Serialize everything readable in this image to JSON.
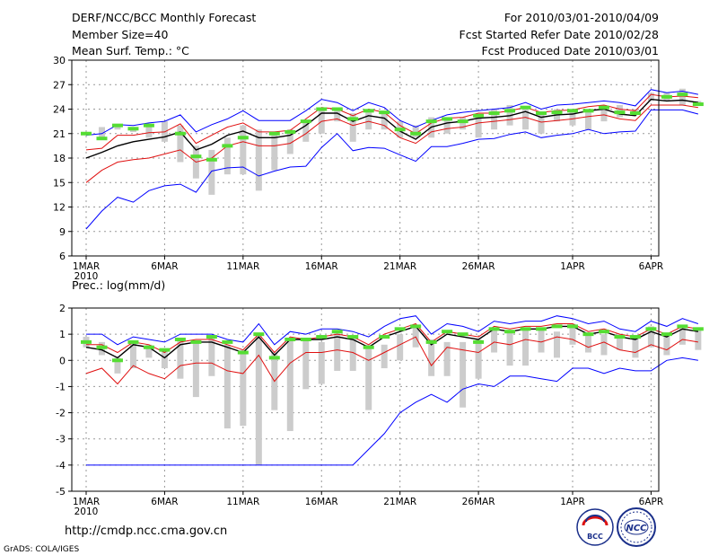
{
  "header": {
    "title": "DERF/NCC/BCC Monthly Forecast",
    "member_size": "Member Size=40",
    "forecast_range": "For 2010/03/01-2010/04/09",
    "start_date": "Fcst Started Refer Date 2010/02/28",
    "produced_date": "Fcst Produced Date 2010/03/01"
  },
  "footer": {
    "url": "http://cmdp.ncc.cma.gov.cn",
    "credit": "GrADS: COLA/IGES",
    "logo_bcc": "BCC",
    "logo_ncc": "NCC"
  },
  "colors": {
    "max": "#0000ff",
    "min": "#0000ff",
    "upper": "#e01010",
    "lower": "#e01010",
    "mean": "#000000",
    "obs": "#55dd33",
    "bar": "#cccccc",
    "grid": "#999999"
  },
  "x_ticks": [
    {
      "day": 1,
      "label": "1MAR",
      "sub": "2010"
    },
    {
      "day": 6,
      "label": "6MAR"
    },
    {
      "day": 11,
      "label": "11MAR"
    },
    {
      "day": 16,
      "label": "16MAR"
    },
    {
      "day": 21,
      "label": "21MAR"
    },
    {
      "day": 26,
      "label": "26MAR"
    },
    {
      "day": 32,
      "label": "1APR"
    },
    {
      "day": 37,
      "label": "6APR"
    }
  ],
  "chart_data": [
    {
      "type": "line",
      "title": "Mean Surf. Temp.: °C",
      "ylabel": "Mean Surf. Temp.: °C",
      "ylim": [
        6,
        30
      ],
      "yticks": [
        6,
        9,
        12,
        15,
        18,
        21,
        24,
        27,
        30
      ],
      "grid": true,
      "x": [
        1,
        2,
        3,
        4,
        5,
        6,
        7,
        8,
        9,
        10,
        11,
        12,
        13,
        14,
        15,
        16,
        17,
        18,
        19,
        20,
        21,
        22,
        23,
        24,
        25,
        26,
        27,
        28,
        29,
        30,
        31,
        32,
        33,
        34,
        35,
        36,
        37,
        38,
        39,
        40
      ],
      "series": [
        {
          "name": "max",
          "values": [
            20.8,
            21.0,
            22.1,
            22.0,
            22.3,
            22.5,
            23.3,
            21.2,
            22.1,
            22.8,
            23.8,
            22.6,
            22.6,
            22.6,
            23.8,
            25.2,
            24.8,
            23.8,
            24.8,
            24.2,
            22.6,
            21.8,
            22.6,
            23.3,
            23.6,
            23.8,
            24.0,
            24.2,
            24.8,
            24.0,
            24.5,
            24.6,
            24.8,
            25.0,
            24.8,
            24.4,
            26.4,
            26.0,
            26.2,
            25.8
          ]
        },
        {
          "name": "upper",
          "values": [
            19.0,
            19.2,
            20.8,
            20.8,
            21.1,
            21.2,
            22.2,
            19.8,
            20.8,
            21.8,
            22.3,
            21.2,
            21.2,
            21.4,
            22.8,
            24.2,
            24.0,
            23.2,
            24.0,
            23.6,
            22.0,
            21.0,
            22.3,
            22.9,
            23.0,
            23.5,
            23.5,
            23.8,
            24.2,
            23.6,
            23.8,
            23.9,
            24.3,
            24.5,
            24.0,
            23.8,
            25.8,
            25.5,
            25.6,
            25.4
          ]
        },
        {
          "name": "mean",
          "values": [
            18.0,
            18.7,
            19.5,
            20.0,
            20.3,
            20.6,
            21.2,
            19.0,
            19.7,
            20.8,
            21.3,
            20.5,
            20.5,
            20.8,
            22.0,
            23.5,
            23.5,
            22.5,
            23.2,
            22.9,
            21.3,
            20.3,
            21.8,
            22.3,
            22.5,
            22.9,
            23.0,
            23.2,
            23.7,
            23.0,
            23.3,
            23.4,
            23.8,
            24.0,
            23.4,
            23.2,
            25.2,
            25.0,
            25.1,
            24.8
          ]
        },
        {
          "name": "lower",
          "values": [
            15.0,
            16.5,
            17.5,
            17.8,
            18.0,
            18.5,
            19.0,
            17.5,
            18.0,
            19.5,
            20.0,
            19.5,
            19.5,
            19.8,
            21.0,
            22.5,
            22.8,
            22.0,
            22.5,
            22.0,
            20.5,
            19.8,
            21.2,
            21.6,
            21.8,
            22.3,
            22.5,
            22.7,
            23.0,
            22.4,
            22.6,
            22.8,
            23.1,
            23.3,
            22.8,
            22.6,
            24.5,
            24.5,
            24.5,
            24.2
          ]
        },
        {
          "name": "min",
          "values": [
            9.3,
            11.5,
            13.2,
            12.6,
            14.0,
            14.6,
            14.8,
            13.8,
            16.4,
            16.8,
            16.9,
            15.8,
            16.4,
            16.9,
            17.0,
            19.3,
            21.0,
            18.9,
            19.3,
            19.2,
            18.4,
            17.6,
            19.4,
            19.4,
            19.8,
            20.3,
            20.4,
            20.9,
            21.2,
            20.5,
            20.8,
            21.0,
            21.5,
            21.0,
            21.2,
            21.3,
            23.9,
            23.9,
            23.9,
            23.4
          ]
        }
      ],
      "bars": [
        [
          21.0,
          21.0
        ],
        [
          20.5,
          21.8
        ],
        [
          21.5,
          22.2
        ],
        [
          21.2,
          21.8
        ],
        [
          20.5,
          22.2
        ],
        [
          20.0,
          22.5
        ],
        [
          17.5,
          22.0
        ],
        [
          15.5,
          19.5
        ],
        [
          13.5,
          19.0
        ],
        [
          16.0,
          20.5
        ],
        [
          16.0,
          22.0
        ],
        [
          14.0,
          21.5
        ],
        [
          16.5,
          21.0
        ],
        [
          18.5,
          21.5
        ],
        [
          20.0,
          22.5
        ],
        [
          21.0,
          24.0
        ],
        [
          22.5,
          24.0
        ],
        [
          20.0,
          23.5
        ],
        [
          21.5,
          24.0
        ],
        [
          21.5,
          23.5
        ],
        [
          20.5,
          22.5
        ],
        [
          20.5,
          22.0
        ],
        [
          20.5,
          23.0
        ],
        [
          21.0,
          23.0
        ],
        [
          21.5,
          23.0
        ],
        [
          20.5,
          23.0
        ],
        [
          21.5,
          24.0
        ],
        [
          22.0,
          24.5
        ],
        [
          21.5,
          24.0
        ],
        [
          21.0,
          23.5
        ],
        [
          22.5,
          24.0
        ],
        [
          22.0,
          24.0
        ],
        [
          21.5,
          24.0
        ],
        [
          22.5,
          24.5
        ],
        [
          23.0,
          24.5
        ],
        [
          23.5,
          24.0
        ],
        [
          25.0,
          26.0
        ],
        [
          25.0,
          26.0
        ],
        [
          24.5,
          26.5
        ],
        [
          24.5,
          25.0
        ]
      ],
      "observed": [
        21.0,
        20.4,
        22.0,
        21.6,
        22.0,
        null,
        21.0,
        18.2,
        17.8,
        19.5,
        20.5,
        null,
        21.0,
        21.2,
        22.5,
        24.0,
        24.0,
        22.8,
        23.8,
        23.6,
        21.5,
        21.0,
        22.5,
        22.8,
        22.5,
        23.2,
        23.5,
        23.8,
        24.2,
        23.5,
        23.6,
        23.8,
        23.8,
        24.2,
        23.6,
        23.5,
        null,
        25.5,
        25.8,
        24.6
      ]
    },
    {
      "type": "line",
      "title": "Prec.: log(mm/d)",
      "ylabel": "Prec.: log(mm/d)",
      "ylim": [
        -5,
        2
      ],
      "yticks": [
        -5,
        -4,
        -3,
        -2,
        -1,
        0,
        1,
        2
      ],
      "grid": true,
      "x": [
        1,
        2,
        3,
        4,
        5,
        6,
        7,
        8,
        9,
        10,
        11,
        12,
        13,
        14,
        15,
        16,
        17,
        18,
        19,
        20,
        21,
        22,
        23,
        24,
        25,
        26,
        27,
        28,
        29,
        30,
        31,
        32,
        33,
        34,
        35,
        36,
        37,
        38,
        39,
        40
      ],
      "series": [
        {
          "name": "max",
          "values": [
            1.0,
            1.0,
            0.6,
            0.9,
            0.8,
            0.7,
            1.0,
            1.0,
            1.0,
            0.8,
            0.7,
            1.4,
            0.6,
            1.1,
            1.0,
            1.2,
            1.2,
            1.1,
            0.9,
            1.3,
            1.6,
            1.7,
            1.0,
            1.4,
            1.3,
            1.1,
            1.5,
            1.4,
            1.5,
            1.5,
            1.7,
            1.6,
            1.4,
            1.5,
            1.2,
            1.1,
            1.5,
            1.3,
            1.6,
            1.4
          ]
        },
        {
          "name": "upper",
          "values": [
            0.6,
            0.6,
            0.3,
            0.7,
            0.6,
            0.3,
            0.7,
            0.8,
            0.8,
            0.6,
            0.4,
            1.0,
            0.3,
            0.9,
            0.8,
            0.9,
            1.0,
            0.9,
            0.6,
            1.0,
            1.2,
            1.4,
            0.7,
            1.1,
            1.0,
            0.9,
            1.3,
            1.2,
            1.3,
            1.3,
            1.4,
            1.4,
            1.1,
            1.2,
            1.0,
            0.9,
            1.2,
            1.0,
            1.3,
            1.2
          ]
        },
        {
          "name": "mean",
          "values": [
            0.5,
            0.4,
            0.1,
            0.6,
            0.5,
            0.1,
            0.6,
            0.7,
            0.7,
            0.5,
            0.3,
            0.9,
            0.2,
            0.8,
            0.8,
            0.8,
            0.9,
            0.8,
            0.5,
            0.9,
            1.1,
            1.3,
            0.6,
            1.0,
            0.9,
            0.8,
            1.2,
            1.1,
            1.2,
            1.2,
            1.3,
            1.3,
            1.0,
            1.1,
            0.9,
            0.8,
            1.1,
            0.9,
            1.2,
            1.1
          ]
        },
        {
          "name": "lower",
          "values": [
            -0.5,
            -0.3,
            -0.9,
            -0.2,
            -0.5,
            -0.7,
            -0.2,
            -0.1,
            -0.1,
            -0.4,
            -0.5,
            0.2,
            -0.8,
            -0.1,
            0.3,
            0.3,
            0.4,
            0.3,
            0.0,
            0.3,
            0.6,
            0.9,
            -0.2,
            0.5,
            0.4,
            0.3,
            0.7,
            0.6,
            0.8,
            0.7,
            0.9,
            0.8,
            0.5,
            0.7,
            0.4,
            0.3,
            0.6,
            0.4,
            0.8,
            0.7
          ]
        },
        {
          "name": "min",
          "values": [
            -4.0,
            -4.0,
            -4.0,
            -4.0,
            -4.0,
            -4.0,
            -4.0,
            -4.0,
            -4.0,
            -4.0,
            -4.0,
            -4.0,
            -4.0,
            -4.0,
            -4.0,
            -4.0,
            -4.0,
            -4.0,
            -3.4,
            -2.8,
            -2.0,
            -1.6,
            -1.3,
            -1.6,
            -1.1,
            -0.9,
            -1.0,
            -0.6,
            -0.6,
            -0.7,
            -0.8,
            -0.3,
            -0.3,
            -0.5,
            -0.3,
            -0.4,
            -0.4,
            0.0,
            0.1,
            0.0
          ]
        }
      ],
      "bars": [
        [
          0.5,
          0.9
        ],
        [
          0.2,
          0.7
        ],
        [
          -0.5,
          0.1
        ],
        [
          -0.3,
          0.7
        ],
        [
          0.1,
          0.6
        ],
        [
          -0.3,
          0.4
        ],
        [
          -0.7,
          0.8
        ],
        [
          -1.4,
          0.7
        ],
        [
          -0.6,
          0.9
        ],
        [
          -2.6,
          0.6
        ],
        [
          -2.5,
          0.4
        ],
        [
          -4.0,
          1.0
        ],
        [
          -1.9,
          0.3
        ],
        [
          -2.7,
          0.8
        ],
        [
          -1.1,
          0.8
        ],
        [
          -0.9,
          0.7
        ],
        [
          -0.4,
          1.1
        ],
        [
          -0.4,
          0.9
        ],
        [
          -1.9,
          0.6
        ],
        [
          -0.3,
          0.6
        ],
        [
          0.0,
          1.0
        ],
        [
          0.5,
          1.3
        ],
        [
          -0.6,
          0.8
        ],
        [
          -0.6,
          0.7
        ],
        [
          -1.8,
          0.7
        ],
        [
          -0.7,
          0.8
        ],
        [
          0.3,
          1.2
        ],
        [
          -0.2,
          1.1
        ],
        [
          -0.2,
          1.2
        ],
        [
          0.3,
          1.2
        ],
        [
          0.1,
          1.1
        ],
        [
          0.6,
          1.4
        ],
        [
          0.3,
          1.0
        ],
        [
          0.2,
          1.0
        ],
        [
          0.4,
          1.0
        ],
        [
          0.1,
          0.9
        ],
        [
          0.5,
          1.3
        ],
        [
          0.2,
          0.9
        ],
        [
          0.6,
          1.3
        ],
        [
          0.4,
          1.2
        ]
      ],
      "observed": [
        0.7,
        0.5,
        0.0,
        0.7,
        0.5,
        0.4,
        0.8,
        0.7,
        0.9,
        0.7,
        0.3,
        1.0,
        0.1,
        0.8,
        0.8,
        0.9,
        1.1,
        0.9,
        0.5,
        0.9,
        1.2,
        1.3,
        0.7,
        1.1,
        1.0,
        0.7,
        1.2,
        1.1,
        1.2,
        1.2,
        1.3,
        1.3,
        1.0,
        1.1,
        0.9,
        0.9,
        1.2,
        1.0,
        1.3,
        1.2
      ]
    }
  ]
}
